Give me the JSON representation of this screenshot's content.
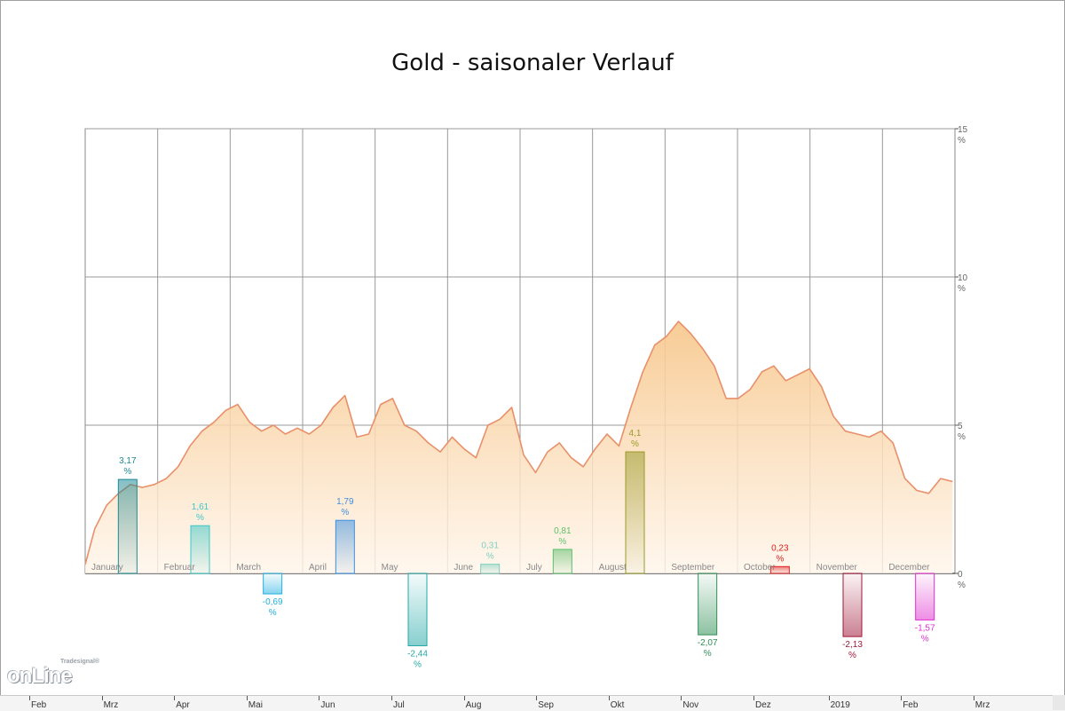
{
  "chart_data": {
    "type": "line",
    "title": "Gold - saisonaler Verlauf",
    "y_unit": "%",
    "ylim": [
      0,
      15
    ],
    "y_ticks": [
      {
        "value": 15,
        "label": "15"
      },
      {
        "value": 10,
        "label": "10"
      },
      {
        "value": 5,
        "label": "5"
      },
      {
        "value": 0,
        "label": "0"
      }
    ],
    "months": [
      "January",
      "Februar",
      "March",
      "April",
      "May",
      "June",
      "July",
      "August",
      "September",
      "October",
      "November",
      "December"
    ],
    "x_day_of_year": [
      1,
      5,
      10,
      15,
      20,
      25,
      30,
      35,
      40,
      45,
      50,
      55,
      60,
      65,
      70,
      75,
      80,
      85,
      90,
      95,
      100,
      105,
      110,
      115,
      120,
      125,
      130,
      135,
      140,
      145,
      150,
      155,
      160,
      165,
      170,
      175,
      180,
      185,
      190,
      195,
      200,
      205,
      210,
      215,
      220,
      225,
      230,
      235,
      240,
      245,
      250,
      255,
      260,
      265,
      270,
      275,
      280,
      285,
      290,
      295,
      300,
      305,
      310,
      315,
      320,
      325,
      330,
      335,
      340,
      345,
      350,
      355,
      360,
      365
    ],
    "seasonal_line": [
      0.3,
      1.5,
      2.3,
      2.7,
      3.0,
      2.9,
      3.0,
      3.2,
      3.6,
      4.3,
      4.8,
      5.1,
      5.5,
      5.7,
      5.1,
      4.8,
      5.0,
      4.7,
      4.9,
      4.7,
      5.0,
      5.6,
      6.0,
      4.6,
      4.7,
      5.7,
      5.9,
      5.0,
      4.8,
      4.4,
      4.1,
      4.6,
      4.2,
      3.9,
      5.0,
      5.2,
      5.6,
      4.0,
      3.4,
      4.1,
      4.4,
      3.9,
      3.6,
      4.2,
      4.7,
      4.3,
      5.6,
      6.8,
      7.7,
      8.0,
      8.5,
      8.1,
      7.6,
      7.0,
      5.9,
      5.9,
      6.2,
      6.8,
      7.0,
      6.5,
      6.7,
      6.9,
      6.3,
      5.3,
      4.8,
      4.7,
      4.6,
      4.8,
      4.4,
      3.2,
      2.8,
      2.7,
      3.2,
      3.1
    ],
    "monthly_bars": [
      {
        "month": "January",
        "value": 3.17,
        "label": "3,17",
        "color": "#1f8a95"
      },
      {
        "month": "Februar",
        "value": 1.61,
        "label": "1,61",
        "color": "#3cc8c8"
      },
      {
        "month": "March",
        "value": -0.69,
        "label": "-0,69",
        "color": "#22b0e0"
      },
      {
        "month": "April",
        "value": 1.79,
        "label": "1,79",
        "color": "#3b8fe0"
      },
      {
        "month": "May",
        "value": -2.44,
        "label": "-2,44",
        "color": "#25a8a8"
      },
      {
        "month": "June",
        "value": 0.31,
        "label": "0,31",
        "color": "#7fd0c0"
      },
      {
        "month": "July",
        "value": 0.81,
        "label": "0,81",
        "color": "#5cbf6a"
      },
      {
        "month": "August",
        "value": 4.1,
        "label": "4,1",
        "color": "#9a9a2a"
      },
      {
        "month": "September",
        "value": -2.07,
        "label": "-2,07",
        "color": "#2f8f55"
      },
      {
        "month": "October",
        "value": 0.23,
        "label": "0,23",
        "color": "#e02020"
      },
      {
        "month": "November",
        "value": -2.13,
        "label": "-2,13",
        "color": "#a01838"
      },
      {
        "month": "December",
        "value": -1.57,
        "label": "-1,57",
        "color": "#e030d0"
      }
    ],
    "percent_sign": "%",
    "line_color": "#e8906a",
    "fill_color": "#fbd9a8",
    "grid": true
  },
  "bottom_axis": [
    "Feb",
    "Mrz",
    "Apr",
    "Mai",
    "Jun",
    "Jul",
    "Aug",
    "Sep",
    "Okt",
    "Nov",
    "Dez",
    "2019",
    "Feb",
    "Mrz"
  ],
  "logo": {
    "sub": "Tradesignal®",
    "main": "onLine"
  }
}
